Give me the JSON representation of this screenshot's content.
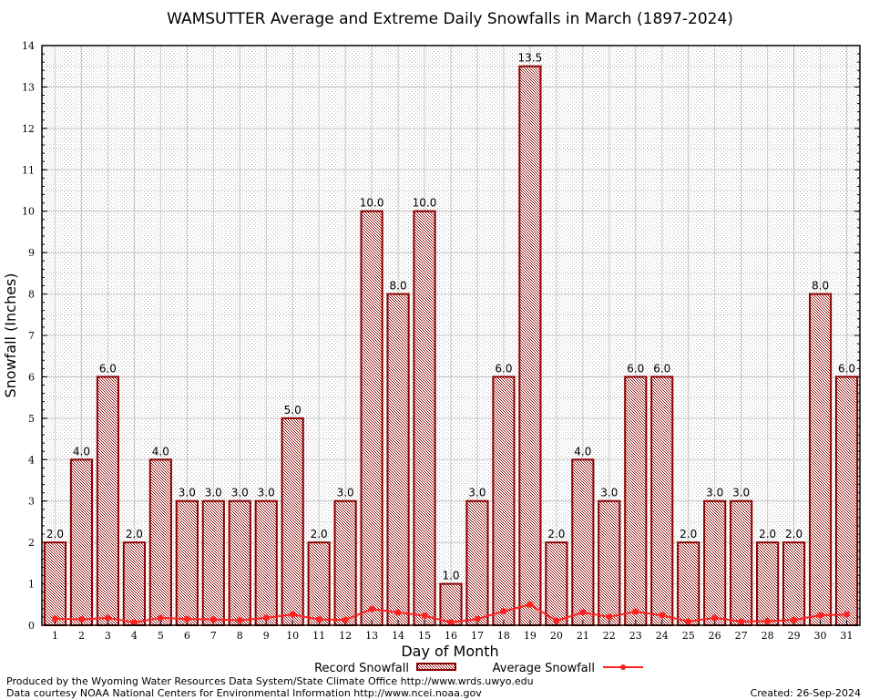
{
  "chart_data": {
    "type": "bar",
    "title": "WAMSUTTER Average and Extreme Daily Snowfalls in March (1897-2024)",
    "xlabel": "Day of Month",
    "ylabel": "Snowfall (Inches)",
    "ylim": [
      0,
      14
    ],
    "yticks": [
      0,
      1,
      2,
      3,
      4,
      5,
      6,
      7,
      8,
      9,
      10,
      11,
      12,
      13,
      14
    ],
    "grid": true,
    "legend_placement": "bottom",
    "categories": [
      "1",
      "2",
      "3",
      "4",
      "5",
      "6",
      "7",
      "8",
      "9",
      "10",
      "11",
      "12",
      "13",
      "14",
      "15",
      "16",
      "17",
      "18",
      "19",
      "20",
      "21",
      "22",
      "23",
      "24",
      "25",
      "26",
      "27",
      "28",
      "29",
      "30",
      "31"
    ],
    "series": [
      {
        "name": "Record Snowfall",
        "type": "bar",
        "color": "#8b0000",
        "values": [
          2.0,
          4.0,
          6.0,
          2.0,
          4.0,
          3.0,
          3.0,
          3.0,
          3.0,
          5.0,
          2.0,
          3.0,
          10.0,
          8.0,
          10.0,
          1.0,
          3.0,
          6.0,
          13.5,
          2.0,
          4.0,
          3.0,
          6.0,
          6.0,
          2.0,
          3.0,
          3.0,
          2.0,
          2.0,
          8.0,
          6.0
        ],
        "labels": [
          "2.0",
          "4.0",
          "6.0",
          "2.0",
          "4.0",
          "3.0",
          "3.0",
          "3.0",
          "3.0",
          "5.0",
          "2.0",
          "3.0",
          "10.0",
          "8.0",
          "10.0",
          "1.0",
          "3.0",
          "6.0",
          "13.5",
          "2.0",
          "4.0",
          "3.0",
          "6.0",
          "6.0",
          "2.0",
          "3.0",
          "3.0",
          "2.0",
          "2.0",
          "8.0",
          "6.0"
        ]
      },
      {
        "name": "Average Snowfall",
        "type": "line",
        "color": "#ff2020",
        "values": [
          0.16,
          0.14,
          0.18,
          0.07,
          0.18,
          0.15,
          0.14,
          0.12,
          0.18,
          0.26,
          0.14,
          0.13,
          0.39,
          0.31,
          0.23,
          0.07,
          0.15,
          0.34,
          0.5,
          0.11,
          0.31,
          0.2,
          0.33,
          0.24,
          0.09,
          0.18,
          0.09,
          0.1,
          0.13,
          0.24,
          0.26
        ]
      }
    ]
  },
  "footer": {
    "produced_by": "Produced by the Wyoming Water Resources Data System/State Climate Office http://www.wrds.uwyo.edu",
    "courtesy": "Data courtesy NOAA National Centers for Environmental Information http://www.ncei.noaa.gov",
    "created": "Created: 26-Sep-2024"
  }
}
